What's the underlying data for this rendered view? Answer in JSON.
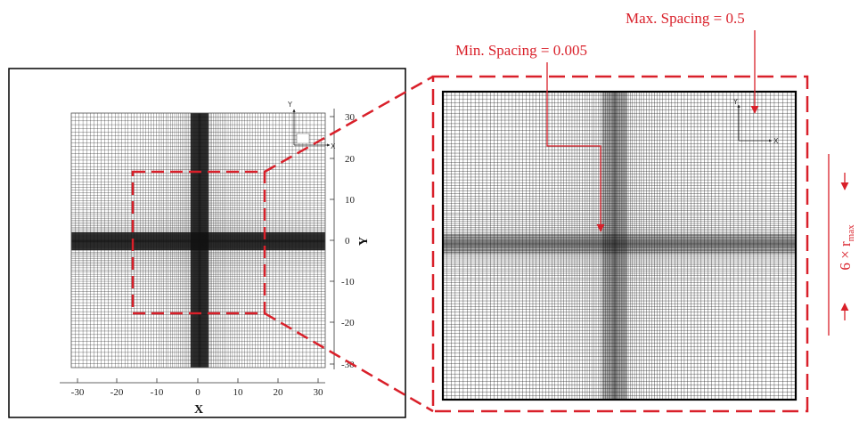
{
  "left_plot": {
    "x_axis_title": "X",
    "y_axis_title": "Y",
    "x_ticks": [
      "-30",
      "-20",
      "-10",
      "0",
      "10",
      "20",
      "30"
    ],
    "y_ticks": [
      "30",
      "20",
      "10",
      "0",
      "-10",
      "-20",
      "-30"
    ],
    "axis_range": [
      -32,
      32
    ],
    "triad": {
      "x": "X",
      "y": "Y"
    }
  },
  "right_plot": {
    "triad": {
      "x": "X",
      "y": "Y"
    }
  },
  "annotations": {
    "max_spacing": "Max. Spacing = 0.5",
    "min_spacing": "Min. Spacing = 0.005",
    "extent_main": "6 × r",
    "extent_sub": "max"
  },
  "colors": {
    "highlight": "#d9202a",
    "mesh": "#1a1a1a"
  }
}
